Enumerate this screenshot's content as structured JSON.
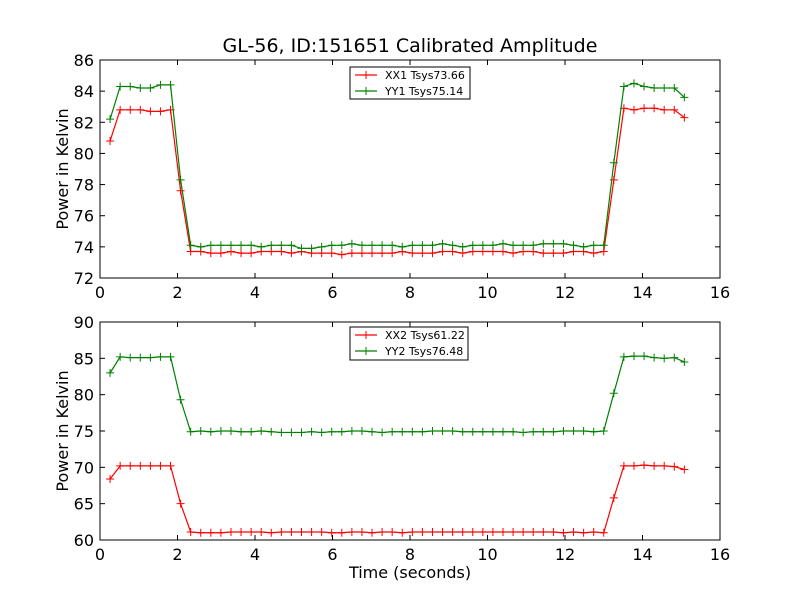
{
  "chart_data": [
    {
      "type": "line",
      "title": "GL-56, ID:151651 Calibrated Amplitude",
      "xlabel": "",
      "ylabel": "Power in Kelvin",
      "xlim": [
        0,
        16
      ],
      "ylim": [
        72,
        86
      ],
      "xticks": [
        0,
        2,
        4,
        6,
        8,
        10,
        12,
        14,
        16
      ],
      "yticks": [
        72,
        74,
        76,
        78,
        80,
        82,
        84,
        86
      ],
      "grid": false,
      "legend": "top-center",
      "x": [
        0.26,
        0.52,
        0.78,
        1.04,
        1.3,
        1.56,
        1.82,
        2.08,
        2.34,
        2.6,
        2.86,
        3.12,
        3.38,
        3.64,
        3.9,
        4.16,
        4.42,
        4.68,
        4.94,
        5.2,
        5.46,
        5.72,
        5.98,
        6.24,
        6.5,
        6.76,
        7.02,
        7.28,
        7.54,
        7.8,
        8.06,
        8.32,
        8.58,
        8.84,
        9.1,
        9.36,
        9.62,
        9.88,
        10.14,
        10.4,
        10.66,
        10.92,
        11.18,
        11.44,
        11.7,
        11.96,
        12.22,
        12.48,
        12.74,
        13.0,
        13.26,
        13.52,
        13.78,
        14.04,
        14.3,
        14.56,
        14.82,
        15.08
      ],
      "series": [
        {
          "name": "XX1 Tsys73.66",
          "color": "#ff0000",
          "values": [
            80.8,
            82.8,
            82.8,
            82.8,
            82.7,
            82.7,
            82.8,
            77.6,
            73.7,
            73.7,
            73.6,
            73.6,
            73.7,
            73.6,
            73.6,
            73.7,
            73.7,
            73.7,
            73.6,
            73.7,
            73.6,
            73.6,
            73.6,
            73.5,
            73.6,
            73.6,
            73.6,
            73.6,
            73.6,
            73.7,
            73.6,
            73.6,
            73.6,
            73.7,
            73.7,
            73.6,
            73.7,
            73.7,
            73.7,
            73.7,
            73.6,
            73.7,
            73.7,
            73.6,
            73.6,
            73.6,
            73.7,
            73.7,
            73.6,
            73.7,
            78.3,
            82.9,
            82.8,
            82.9,
            82.9,
            82.8,
            82.8,
            82.3
          ]
        },
        {
          "name": "YY1 Tsys75.14",
          "color": "#008000",
          "values": [
            82.2,
            84.3,
            84.3,
            84.2,
            84.2,
            84.4,
            84.4,
            78.3,
            74.1,
            74.0,
            74.1,
            74.1,
            74.1,
            74.1,
            74.1,
            74.0,
            74.1,
            74.1,
            74.1,
            73.9,
            73.9,
            74.0,
            74.1,
            74.1,
            74.2,
            74.1,
            74.1,
            74.1,
            74.1,
            74.0,
            74.1,
            74.1,
            74.1,
            74.2,
            74.1,
            74.0,
            74.1,
            74.1,
            74.1,
            74.2,
            74.1,
            74.1,
            74.1,
            74.2,
            74.2,
            74.2,
            74.1,
            74.0,
            74.1,
            74.1,
            79.4,
            84.3,
            84.5,
            84.3,
            84.2,
            84.2,
            84.2,
            83.6
          ]
        }
      ]
    },
    {
      "type": "line",
      "title": "",
      "xlabel": "Time (seconds)",
      "ylabel": "Power in Kelvin",
      "xlim": [
        0,
        16
      ],
      "ylim": [
        60,
        90
      ],
      "xticks": [
        0,
        2,
        4,
        6,
        8,
        10,
        12,
        14,
        16
      ],
      "yticks": [
        60,
        65,
        70,
        75,
        80,
        85,
        90
      ],
      "grid": false,
      "legend": "top-center",
      "x": [
        0.26,
        0.52,
        0.78,
        1.04,
        1.3,
        1.56,
        1.82,
        2.08,
        2.34,
        2.6,
        2.86,
        3.12,
        3.38,
        3.64,
        3.9,
        4.16,
        4.42,
        4.68,
        4.94,
        5.2,
        5.46,
        5.72,
        5.98,
        6.24,
        6.5,
        6.76,
        7.02,
        7.28,
        7.54,
        7.8,
        8.06,
        8.32,
        8.58,
        8.84,
        9.1,
        9.36,
        9.62,
        9.88,
        10.14,
        10.4,
        10.66,
        10.92,
        11.18,
        11.44,
        11.7,
        11.96,
        12.22,
        12.48,
        12.74,
        13.0,
        13.26,
        13.52,
        13.78,
        14.04,
        14.3,
        14.56,
        14.82,
        15.08
      ],
      "series": [
        {
          "name": "XX2 Tsys61.22",
          "color": "#ff0000",
          "values": [
            68.4,
            70.2,
            70.2,
            70.2,
            70.2,
            70.2,
            70.2,
            65.0,
            61.1,
            61.0,
            61.0,
            61.0,
            61.1,
            61.1,
            61.1,
            61.1,
            61.0,
            61.1,
            61.1,
            61.1,
            61.1,
            61.1,
            61.0,
            61.0,
            61.1,
            61.1,
            61.0,
            61.1,
            61.1,
            61.0,
            61.1,
            61.1,
            61.1,
            61.1,
            61.1,
            61.1,
            61.1,
            61.1,
            61.1,
            61.1,
            61.1,
            61.1,
            61.1,
            61.1,
            61.1,
            61.0,
            61.1,
            61.0,
            61.1,
            61.0,
            65.8,
            70.2,
            70.2,
            70.3,
            70.2,
            70.2,
            70.1,
            69.7
          ]
        },
        {
          "name": "YY2 Tsys76.48",
          "color": "#008000",
          "values": [
            83.0,
            85.2,
            85.1,
            85.1,
            85.1,
            85.2,
            85.2,
            79.3,
            74.9,
            75.0,
            74.9,
            75.0,
            75.0,
            74.9,
            74.9,
            75.0,
            74.9,
            74.8,
            74.8,
            74.8,
            74.9,
            74.8,
            74.9,
            74.9,
            75.0,
            75.0,
            74.9,
            74.8,
            74.9,
            74.9,
            74.9,
            74.9,
            75.0,
            75.0,
            75.0,
            74.9,
            74.9,
            74.9,
            74.9,
            74.9,
            74.9,
            74.8,
            74.9,
            74.9,
            74.9,
            75.0,
            75.0,
            75.0,
            74.9,
            75.0,
            80.2,
            85.2,
            85.3,
            85.3,
            85.1,
            85.0,
            85.1,
            84.5
          ]
        }
      ]
    }
  ]
}
